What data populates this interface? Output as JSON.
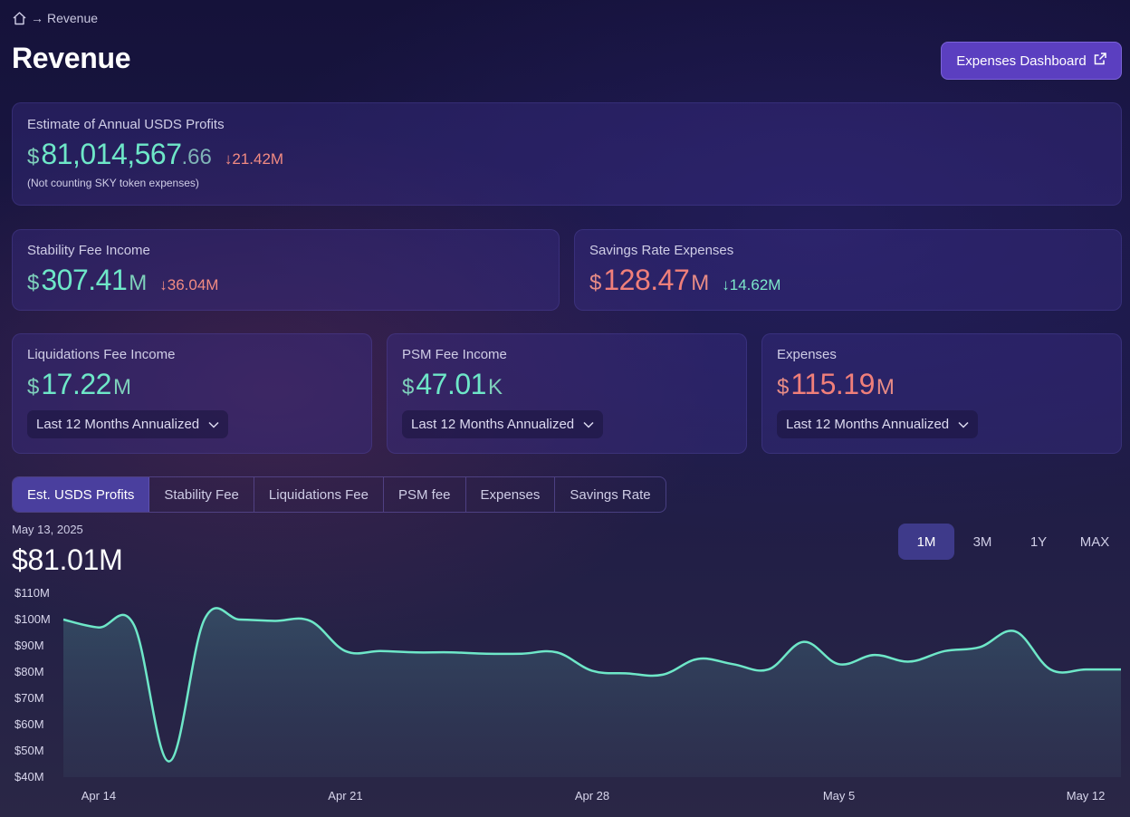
{
  "breadcrumb": {
    "current": "Revenue"
  },
  "page": {
    "title": "Revenue"
  },
  "header": {
    "expenses_button": "Expenses Dashboard"
  },
  "profits_card": {
    "label": "Estimate of Annual USDS Profits",
    "currency": "$",
    "value": "81,014,567",
    "decimals": ".66",
    "delta": "21.42M",
    "note": "(Not counting SKY token expenses)"
  },
  "stability_card": {
    "label": "Stability Fee Income",
    "currency": "$",
    "value": "307.41",
    "suffix": "M",
    "delta": "36.04M"
  },
  "savings_card": {
    "label": "Savings Rate Expenses",
    "currency": "$",
    "value": "128.47",
    "suffix": "M",
    "delta": "14.62M"
  },
  "liquidations_card": {
    "label": "Liquidations Fee Income",
    "currency": "$",
    "value": "17.22",
    "suffix": "M",
    "period": "Last 12 Months Annualized"
  },
  "psm_card": {
    "label": "PSM Fee Income",
    "currency": "$",
    "value": "47.01",
    "suffix": "K",
    "period": "Last 12 Months Annualized"
  },
  "expenses_card": {
    "label": "Expenses",
    "currency": "$",
    "value": "115.19",
    "suffix": "M",
    "period": "Last 12 Months Annualized"
  },
  "tabs": [
    {
      "label": "Est. USDS Profits",
      "active": true
    },
    {
      "label": "Stability Fee"
    },
    {
      "label": "Liquidations Fee"
    },
    {
      "label": "PSM fee"
    },
    {
      "label": "Expenses"
    },
    {
      "label": "Savings Rate"
    }
  ],
  "chart_header": {
    "date": "May 13, 2025",
    "value": "$81.01M"
  },
  "range_buttons": [
    {
      "label": "1M",
      "active": true
    },
    {
      "label": "3M"
    },
    {
      "label": "1Y"
    },
    {
      "label": "MAX"
    }
  ],
  "colors": {
    "line": "#6ee7c8",
    "accent": "#5b3fc0",
    "positive": "#6ee7c8",
    "negative": "#f07f7a"
  },
  "chart_data": {
    "type": "area",
    "ylim": [
      40,
      110
    ],
    "yticks": [
      "$110M",
      "$100M",
      "$90M",
      "$80M",
      "$70M",
      "$60M",
      "$50M",
      "$40M"
    ],
    "xticks": [
      "Apr 14",
      "Apr 21",
      "Apr 28",
      "May 5",
      "May 12"
    ],
    "xlim": [
      "Apr 13",
      "May 13"
    ],
    "series": [
      {
        "x": [
          "Apr 13",
          "Apr 14",
          "Apr 15",
          "Apr 16",
          "Apr 17",
          "Apr 18",
          "Apr 19",
          "Apr 20",
          "Apr 21",
          "Apr 22",
          "Apr 23",
          "Apr 24",
          "Apr 25",
          "Apr 26",
          "Apr 27",
          "Apr 28",
          "Apr 29",
          "Apr 30",
          "May 1",
          "May 2",
          "May 3",
          "May 4",
          "May 5",
          "May 6",
          "May 7",
          "May 8",
          "May 9",
          "May 10",
          "May 11",
          "May 12",
          "May 13"
        ],
        "values": [
          100,
          97,
          98,
          46,
          100,
          100,
          99.5,
          99.5,
          88,
          88,
          87.5,
          87.5,
          87,
          87,
          87.5,
          80.5,
          79.5,
          79,
          85,
          83,
          81,
          91.5,
          83,
          86.5,
          84,
          88,
          89.5,
          95.5,
          81,
          81,
          81
        ]
      }
    ]
  }
}
